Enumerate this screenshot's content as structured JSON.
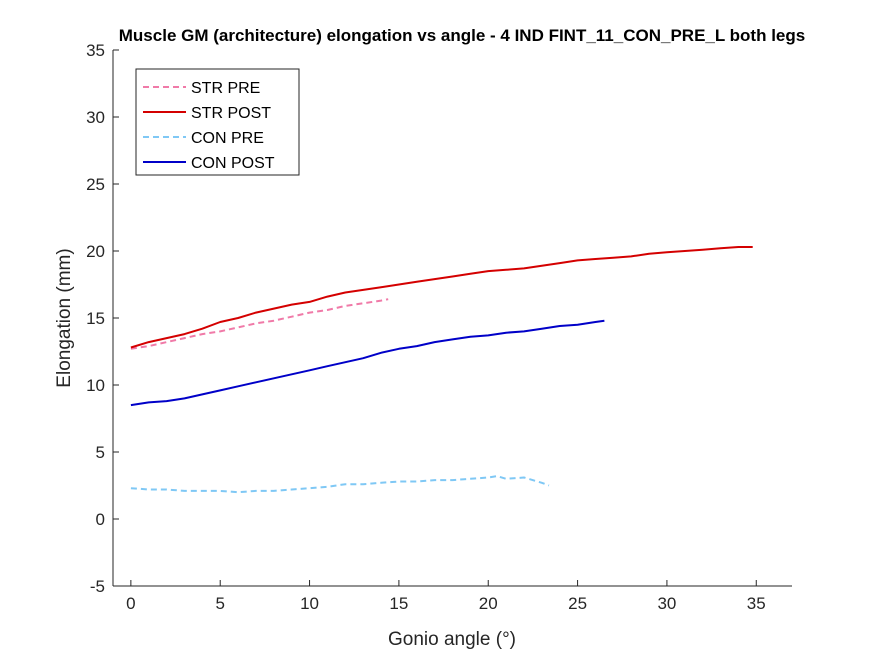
{
  "chart_data": {
    "type": "line",
    "title": "Muscle GM (architecture) elongation vs angle - 4 IND FINT_11_CON_PRE_L both legs",
    "xlabel": "Gonio angle (°)",
    "ylabel": "Elongation (mm)",
    "xlim": [
      -1,
      37
    ],
    "ylim": [
      -5,
      35
    ],
    "xticks": [
      0,
      5,
      10,
      15,
      20,
      25,
      30,
      35
    ],
    "yticks": [
      -5,
      0,
      5,
      10,
      15,
      20,
      25,
      30,
      35
    ],
    "grid": false,
    "legend_position": "top-left",
    "series": [
      {
        "name": "STR PRE",
        "color": "#f07aa8",
        "style": "dashed",
        "x": [
          0,
          1,
          2,
          3,
          4,
          5,
          6,
          7,
          8,
          9,
          10,
          11,
          12,
          13,
          14,
          14.4
        ],
        "y": [
          12.7,
          12.9,
          13.2,
          13.5,
          13.8,
          14.0,
          14.3,
          14.6,
          14.8,
          15.1,
          15.4,
          15.6,
          15.9,
          16.1,
          16.3,
          16.4
        ]
      },
      {
        "name": "STR POST",
        "color": "#d40000",
        "style": "solid",
        "x": [
          0,
          1,
          2,
          3,
          4,
          5,
          6,
          7,
          8,
          9,
          10,
          11,
          12,
          13,
          14,
          15,
          16,
          17,
          18,
          19,
          20,
          21,
          22,
          23,
          24,
          25,
          26,
          27,
          28,
          29,
          30,
          31,
          32,
          33,
          34,
          34.8
        ],
        "y": [
          12.8,
          13.2,
          13.5,
          13.8,
          14.2,
          14.7,
          15.0,
          15.4,
          15.7,
          16.0,
          16.2,
          16.6,
          16.9,
          17.1,
          17.3,
          17.5,
          17.7,
          17.9,
          18.1,
          18.3,
          18.5,
          18.6,
          18.7,
          18.9,
          19.1,
          19.3,
          19.4,
          19.5,
          19.6,
          19.8,
          19.9,
          20.0,
          20.1,
          20.2,
          20.3,
          20.3
        ]
      },
      {
        "name": "CON PRE",
        "color": "#7fc8f5",
        "style": "dashed",
        "x": [
          0,
          1,
          2,
          3,
          4,
          5,
          6,
          7,
          8,
          9,
          10,
          11,
          12,
          13,
          14,
          15,
          16,
          17,
          18,
          19,
          20,
          20.5,
          21,
          22,
          23,
          23.4
        ],
        "y": [
          2.3,
          2.2,
          2.2,
          2.1,
          2.1,
          2.1,
          2.0,
          2.1,
          2.1,
          2.2,
          2.3,
          2.4,
          2.6,
          2.6,
          2.7,
          2.8,
          2.8,
          2.9,
          2.9,
          3.0,
          3.1,
          3.2,
          3.0,
          3.1,
          2.7,
          2.5
        ]
      },
      {
        "name": "CON POST",
        "color": "#0000c8",
        "style": "solid",
        "x": [
          0,
          1,
          2,
          3,
          4,
          5,
          6,
          7,
          8,
          9,
          10,
          11,
          12,
          13,
          14,
          15,
          16,
          17,
          18,
          19,
          20,
          21,
          22,
          23,
          24,
          25,
          26,
          26.5
        ],
        "y": [
          8.5,
          8.7,
          8.8,
          9.0,
          9.3,
          9.6,
          9.9,
          10.2,
          10.5,
          10.8,
          11.1,
          11.4,
          11.7,
          12.0,
          12.4,
          12.7,
          12.9,
          13.2,
          13.4,
          13.6,
          13.7,
          13.9,
          14.0,
          14.2,
          14.4,
          14.5,
          14.7,
          14.8
        ]
      }
    ]
  }
}
